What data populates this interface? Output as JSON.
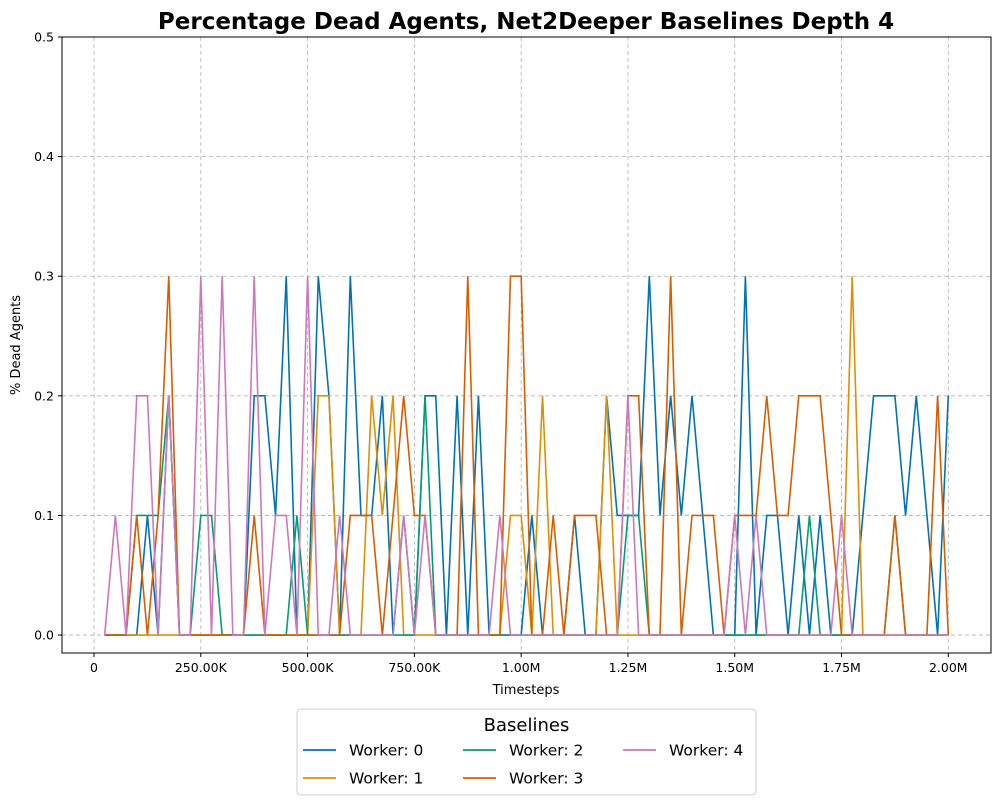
{
  "chart_data": {
    "type": "line",
    "title": "Percentage Dead Agents, Net2Deeper Baselines Depth 4",
    "xlabel": "Timesteps",
    "ylabel": "% Dead Agents",
    "xlim": [
      -75000,
      2100000
    ],
    "ylim": [
      -0.015,
      0.5
    ],
    "xticks": [
      0,
      250000,
      500000,
      750000,
      1000000,
      1250000,
      1500000,
      1750000,
      2000000
    ],
    "xtick_labels": [
      "0",
      "250.00K",
      "500.00K",
      "750.00K",
      "1.00M",
      "1.25M",
      "1.50M",
      "1.75M",
      "2.00M"
    ],
    "yticks": [
      0.0,
      0.1,
      0.2,
      0.3,
      0.4,
      0.5
    ],
    "ytick_labels": [
      "0.0",
      "0.1",
      "0.2",
      "0.3",
      "0.4",
      "0.5"
    ],
    "grid": true,
    "legend": {
      "title": "Baselines",
      "placement": "bottom-center"
    },
    "x": [
      25000,
      50000,
      75000,
      100000,
      125000,
      150000,
      175000,
      200000,
      225000,
      250000,
      275000,
      300000,
      325000,
      350000,
      375000,
      400000,
      425000,
      450000,
      475000,
      500000,
      525000,
      550000,
      575000,
      600000,
      625000,
      650000,
      675000,
      700000,
      725000,
      750000,
      775000,
      800000,
      825000,
      850000,
      875000,
      900000,
      925000,
      950000,
      975000,
      1000000,
      1025000,
      1050000,
      1075000,
      1100000,
      1125000,
      1150000,
      1175000,
      1200000,
      1225000,
      1250000,
      1275000,
      1300000,
      1325000,
      1350000,
      1375000,
      1400000,
      1425000,
      1450000,
      1475000,
      1500000,
      1525000,
      1550000,
      1575000,
      1600000,
      1625000,
      1650000,
      1675000,
      1700000,
      1725000,
      1750000,
      1775000,
      1800000,
      1825000,
      1850000,
      1875000,
      1900000,
      1925000,
      1950000,
      1975000,
      2000000
    ],
    "series": [
      {
        "name": "Worker: 0",
        "color": "#0173b2",
        "values": [
          0,
          0,
          0,
          0,
          0.1,
          0,
          0.2,
          0,
          0,
          0,
          0,
          0,
          0,
          0,
          0.2,
          0.2,
          0.1,
          0.3,
          0,
          0,
          0.3,
          0.2,
          0,
          0.3,
          0.1,
          0.1,
          0.2,
          0,
          0.1,
          0,
          0.2,
          0.2,
          0,
          0.2,
          0,
          0.2,
          0,
          0,
          0,
          0,
          0.1,
          0,
          0,
          0,
          0.1,
          0,
          0,
          0.2,
          0.1,
          0.1,
          0.1,
          0.3,
          0.1,
          0.2,
          0.1,
          0.2,
          0.1,
          0,
          0,
          0,
          0.3,
          0,
          0.1,
          0.1,
          0,
          0.1,
          0,
          0.1,
          0,
          0,
          0,
          0.1,
          0.2,
          0.2,
          0.2,
          0.1,
          0.2,
          0.1,
          0,
          0.2
        ]
      },
      {
        "name": "Worker: 1",
        "color": "#de8f05",
        "values": [
          0,
          0,
          0,
          0,
          0,
          0,
          0,
          0,
          0,
          0,
          0,
          0,
          0,
          0,
          0,
          0,
          0,
          0,
          0,
          0,
          0.2,
          0.2,
          0,
          0,
          0,
          0.2,
          0.1,
          0.2,
          0,
          0,
          0,
          0,
          0,
          0,
          0,
          0,
          0,
          0,
          0.1,
          0.1,
          0,
          0.2,
          0,
          0,
          0,
          0,
          0,
          0.2,
          0,
          0,
          0,
          0,
          0,
          0,
          0,
          0,
          0,
          0,
          0,
          0,
          0,
          0,
          0,
          0,
          0,
          0,
          0,
          0,
          0,
          0,
          0.3,
          0,
          0,
          0,
          0,
          0,
          0,
          0,
          0,
          0
        ]
      },
      {
        "name": "Worker: 2",
        "color": "#029e73",
        "values": [
          0,
          0,
          0,
          0.1,
          0.1,
          0.1,
          0.2,
          0,
          0,
          0.1,
          0.1,
          0,
          0,
          0,
          0,
          0,
          0,
          0,
          0.1,
          0,
          0,
          0,
          0,
          0,
          0,
          0,
          0,
          0,
          0,
          0,
          0.2,
          0,
          0,
          0,
          0,
          0,
          0,
          0,
          0,
          0,
          0,
          0,
          0,
          0,
          0,
          0,
          0,
          0,
          0,
          0.1,
          0.1,
          0,
          0,
          0,
          0,
          0,
          0,
          0,
          0,
          0,
          0,
          0,
          0,
          0,
          0,
          0,
          0.1,
          0,
          0,
          0,
          0,
          0,
          0,
          0,
          0.1,
          0,
          0,
          0,
          0,
          0
        ]
      },
      {
        "name": "Worker: 3",
        "color": "#d55e00",
        "values": [
          0,
          0,
          0,
          0.1,
          0,
          0.1,
          0.3,
          0,
          0,
          0,
          0,
          0,
          0,
          0,
          0.1,
          0,
          0,
          0,
          0,
          0,
          0,
          0,
          0,
          0.1,
          0.1,
          0.1,
          0,
          0.1,
          0.2,
          0.1,
          0.1,
          0,
          0,
          0,
          0.3,
          0,
          0,
          0,
          0.3,
          0.3,
          0,
          0,
          0.1,
          0,
          0.1,
          0.1,
          0.1,
          0,
          0,
          0.2,
          0.2,
          0,
          0,
          0.3,
          0,
          0.1,
          0.1,
          0.1,
          0,
          0.1,
          0.1,
          0.1,
          0.2,
          0.1,
          0.1,
          0.2,
          0.2,
          0.2,
          0.1,
          0,
          0,
          0,
          0,
          0,
          0.1,
          0,
          0,
          0,
          0.2,
          0
        ]
      },
      {
        "name": "Worker: 4",
        "color": "#cc78bc",
        "values": [
          0,
          0.1,
          0,
          0.2,
          0.2,
          0,
          0.2,
          0,
          0,
          0.3,
          0,
          0.3,
          0,
          0,
          0.3,
          0,
          0.1,
          0.1,
          0,
          0.3,
          0,
          0,
          0.1,
          0,
          0,
          0,
          0,
          0,
          0.1,
          0,
          0.1,
          0,
          0,
          0,
          0,
          0,
          0,
          0.1,
          0,
          0,
          0,
          0,
          0,
          0,
          0,
          0,
          0,
          0,
          0,
          0.2,
          0,
          0,
          0,
          0,
          0,
          0,
          0,
          0,
          0,
          0.1,
          0,
          0.1,
          0,
          0,
          0,
          0,
          0,
          0,
          0,
          0.1,
          0,
          0,
          0,
          0,
          0,
          0,
          0,
          0,
          0,
          0
        ]
      }
    ]
  }
}
